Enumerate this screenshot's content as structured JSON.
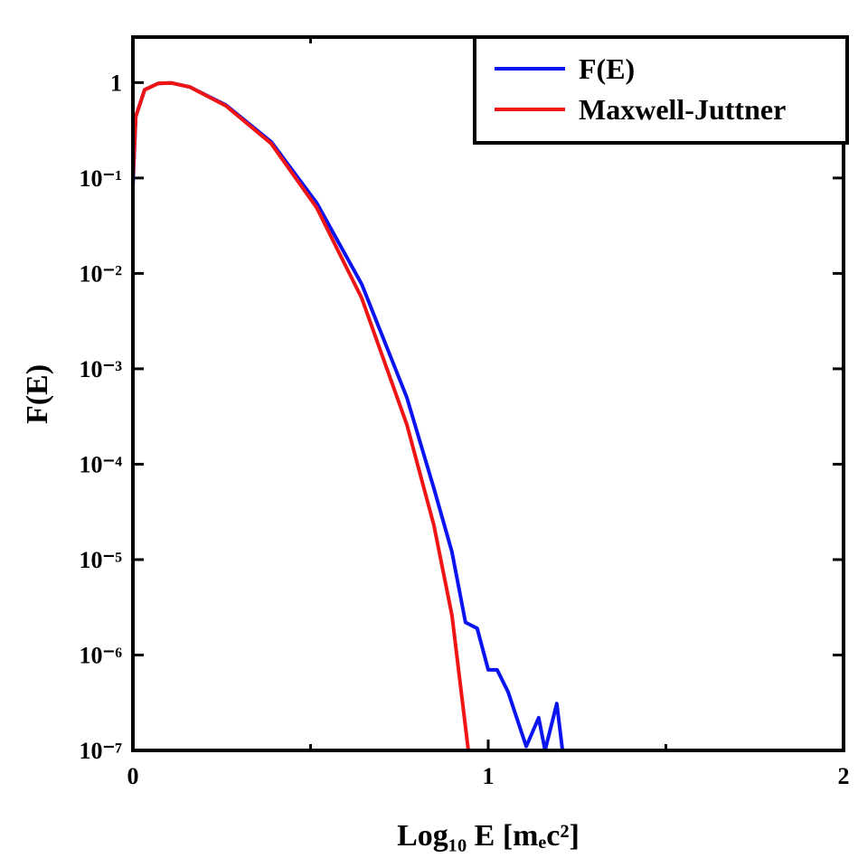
{
  "chart_data": {
    "type": "line",
    "xlabel": "Log₁₀ E [mₑc²]",
    "ylabel": "F(E)",
    "xlim": [
      0,
      2
    ],
    "xticks": [
      0,
      1,
      2
    ],
    "xminorticks": [
      0.5,
      1.5
    ],
    "ylim": [
      1e-07,
      3
    ],
    "ylog": true,
    "yticks": [
      {
        "value": 1e-07,
        "label": "10⁻⁷"
      },
      {
        "value": 1e-06,
        "label": "10⁻⁶"
      },
      {
        "value": 1e-05,
        "label": "10⁻⁵"
      },
      {
        "value": 0.0001,
        "label": "10⁻⁴"
      },
      {
        "value": 0.001,
        "label": "10⁻³"
      },
      {
        "value": 0.01,
        "label": "10⁻²"
      },
      {
        "value": 0.1,
        "label": "10⁻¹"
      },
      1
    ],
    "legend": "upper right",
    "series": [
      {
        "name": "F(E)",
        "color": "#0a14f0",
        "x": [
          0,
          0.008,
          0.033,
          0.071,
          0.109,
          0.16,
          0.262,
          0.389,
          0.517,
          0.644,
          0.771,
          0.847,
          0.898,
          0.936,
          0.969,
          1.0,
          1.025,
          1.056,
          1.107,
          1.142,
          1.16,
          1.193,
          1.209,
          1.4,
          1.534,
          1.649,
          1.68,
          1.712,
          1.776,
          1.82,
          1.865,
          2.0
        ],
        "values": [
          0.08,
          0.44,
          0.84,
          0.98,
          0.99,
          0.9,
          0.58,
          0.24,
          0.055,
          0.0077,
          0.0005,
          5.6e-05,
          1.2e-05,
          2.2e-06,
          1.9e-06,
          7e-07,
          7e-07,
          4.1e-07,
          1.1e-07,
          2.2e-07,
          1e-07,
          3.1e-07,
          1e-07,
          null,
          1e-07,
          1e-07,
          null,
          1e-07,
          1e-07,
          null,
          1e-07,
          1e-07
        ]
      },
      {
        "name": "Maxwell-Juttner",
        "color": "#f01414",
        "x": [
          0,
          0.008,
          0.033,
          0.071,
          0.109,
          0.16,
          0.262,
          0.389,
          0.517,
          0.644,
          0.771,
          0.847,
          0.898,
          0.944
        ],
        "values": [
          0.095,
          0.44,
          0.84,
          0.98,
          0.99,
          0.9,
          0.57,
          0.23,
          0.049,
          0.0055,
          0.00026,
          2.3e-05,
          2.6e-06,
          1e-07
        ]
      }
    ]
  }
}
